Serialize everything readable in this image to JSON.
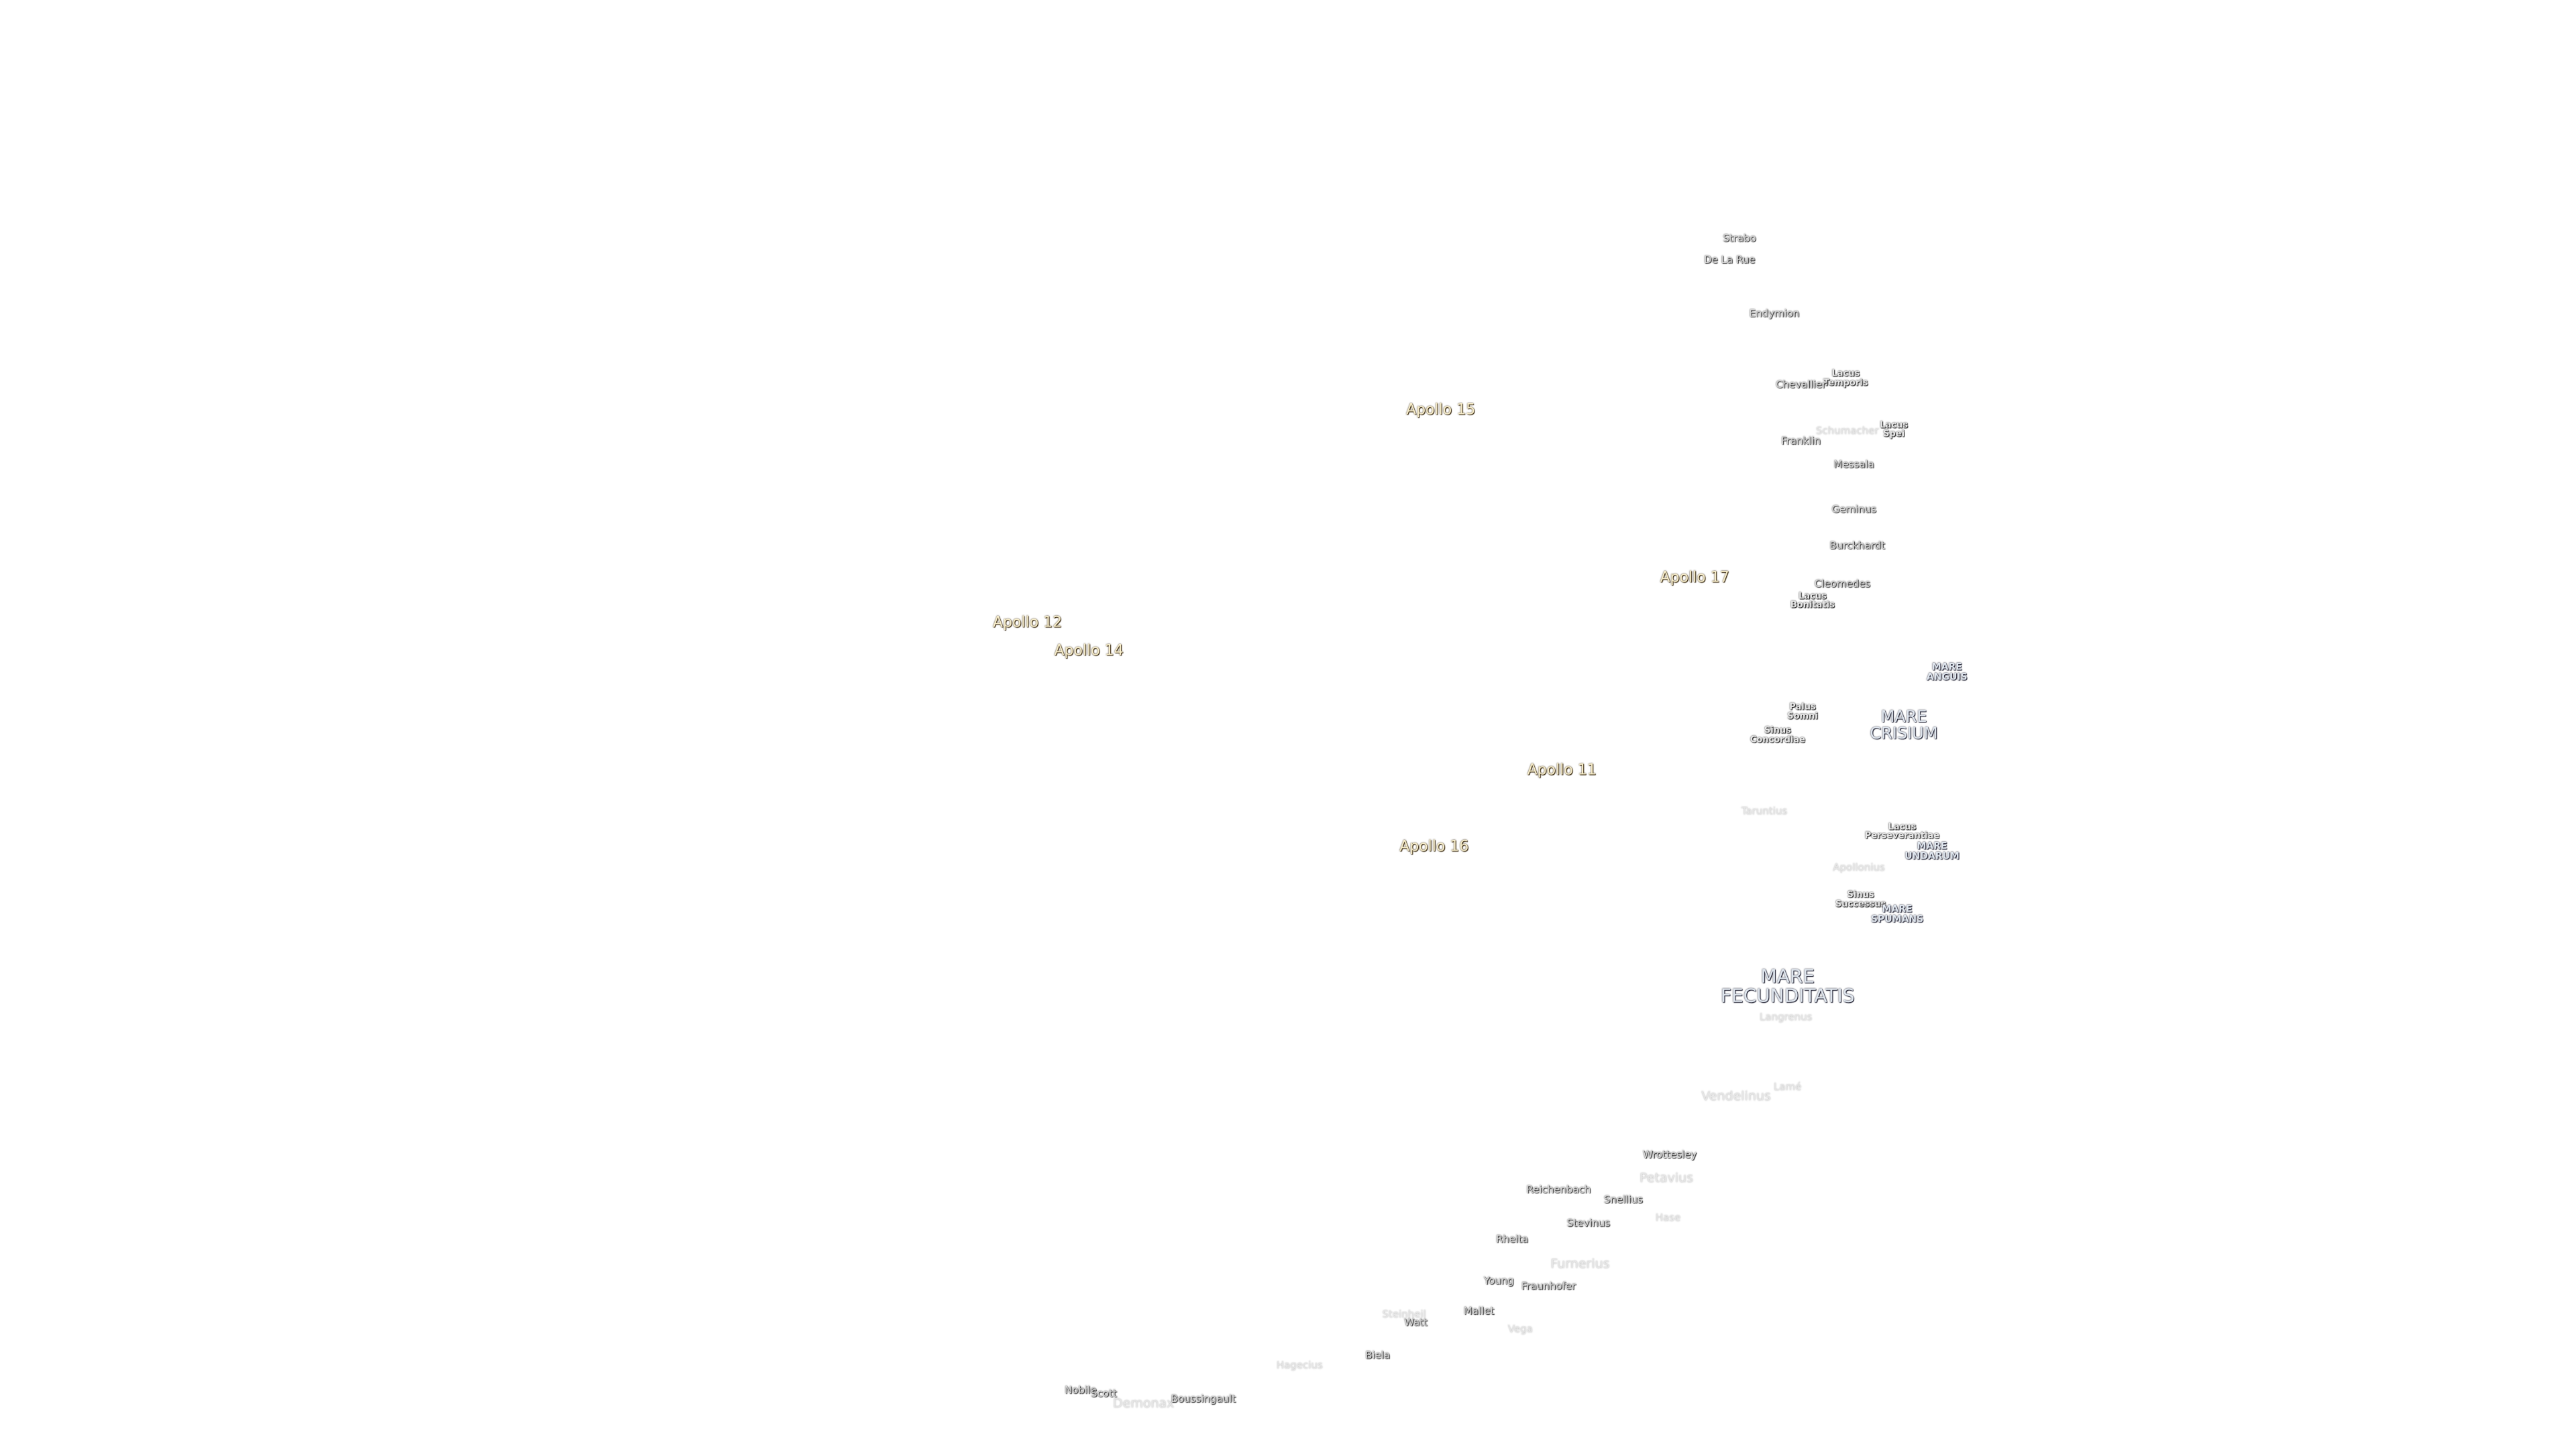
{
  "labels": [
    [
      "Strabo"
    ],
    [
      "De La Rue"
    ],
    [
      "Endymion"
    ],
    [
      "Lacus",
      "Temporis"
    ],
    [
      "Chevallier"
    ],
    [
      "Apollo 15"
    ],
    [
      "Lacus",
      "Spei"
    ],
    [
      "Schumacher"
    ],
    [
      "Franklin"
    ],
    [
      "Messala"
    ],
    [
      "Geminus"
    ],
    [
      "Burckhardt"
    ],
    [
      "Apollo 17"
    ],
    [
      "Cleomedes"
    ],
    [
      "Lacus",
      "Bonitatis"
    ],
    [
      "Apollo 12"
    ],
    [
      "Apollo 14"
    ],
    [
      "MARE",
      "ANGUIS"
    ],
    [
      "Palus",
      "Somni"
    ],
    [
      "MARE",
      "CRISIUM"
    ],
    [
      "Sinus",
      "Concordiae"
    ],
    [
      "Apollo 11"
    ],
    [
      "Taruntius"
    ],
    [
      "Lacus",
      "Perseverantiae"
    ],
    [
      "MARE",
      "UNDARUM"
    ],
    [
      "Apollo 16"
    ],
    [
      "Apollonius"
    ],
    [
      "Sinus",
      "Successus"
    ],
    [
      "MARE",
      "SPUMANS"
    ],
    [
      "MARE",
      "FECUNDITATIS"
    ],
    [
      "Langrenus"
    ],
    [
      "Lamé"
    ],
    [
      "Vendelinus"
    ],
    [
      "Wrottesley"
    ],
    [
      "Petavius"
    ],
    [
      "Reichenbach"
    ],
    [
      "Snellius"
    ],
    [
      "Hase"
    ],
    [
      "Stevinus"
    ],
    [
      "Rheita"
    ],
    [
      "Furnerius"
    ],
    [
      "Young"
    ],
    [
      "Fraunhofer"
    ],
    [
      "Mallet"
    ],
    [
      "Steinheil"
    ],
    [
      "Watt"
    ],
    [
      "Vega"
    ],
    [
      "Biela"
    ],
    [
      "Hagecius"
    ],
    [
      "Nobile"
    ],
    [
      "Scott"
    ],
    [
      "Demonax"
    ],
    [
      "Boussingault"
    ]
  ]
}
